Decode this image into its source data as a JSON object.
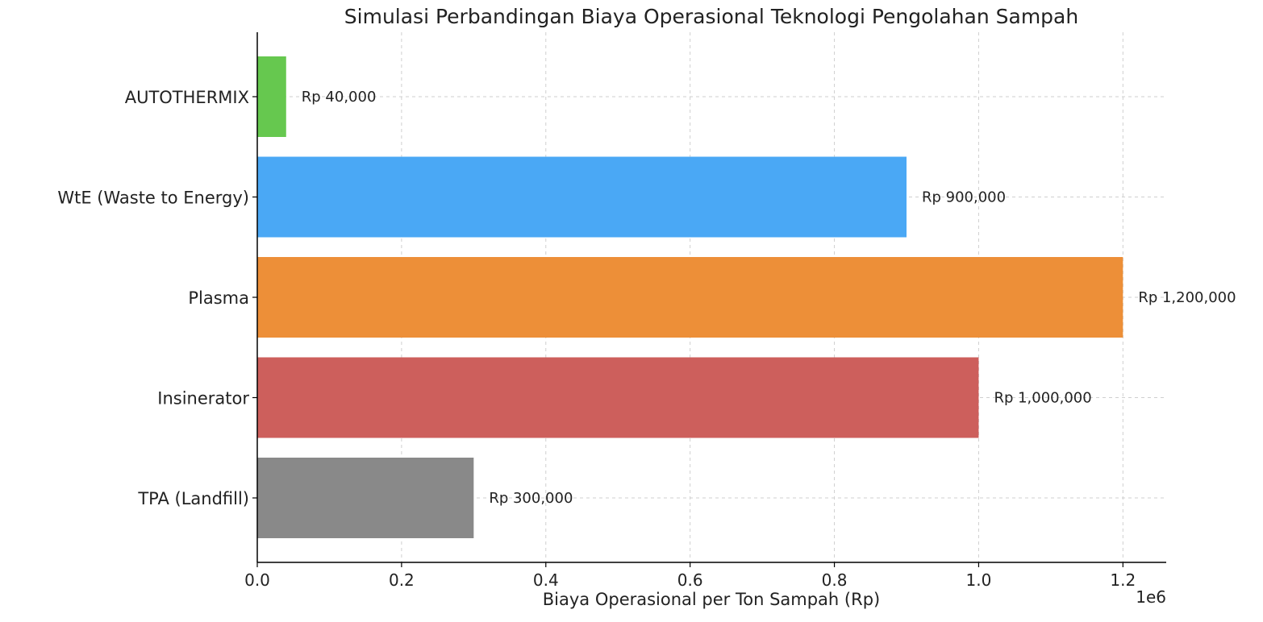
{
  "chart_data": {
    "type": "bar",
    "orientation": "horizontal",
    "title": "Simulasi Perbandingan Biaya Operasional Teknologi Pengolahan Sampah",
    "xlabel": "Biaya Operasional per Ton Sampah (Rp)",
    "ylabel": "",
    "x_offset_text": "1e6",
    "xlim": [
      0,
      1260000
    ],
    "x_ticks": [
      0,
      200000,
      400000,
      600000,
      800000,
      1000000,
      1200000
    ],
    "x_tick_labels": [
      "0.0",
      "0.2",
      "0.4",
      "0.6",
      "0.8",
      "1.0",
      "1.2"
    ],
    "grid": true,
    "categories": [
      "AUTOTHERMIX",
      "WtE (Waste to Energy)",
      "Plasma",
      "Insinerator",
      "TPA (Landfill)"
    ],
    "values": [
      40000,
      900000,
      1200000,
      1000000,
      300000
    ],
    "data_labels": [
      "Rp 40,000",
      "Rp 900,000",
      "Rp 1,200,000",
      "Rp 1,000,000",
      "Rp 300,000"
    ],
    "colors": [
      "#66c84f",
      "#4aa8f5",
      "#ed8f38",
      "#cd5f5c",
      "#898989"
    ]
  }
}
